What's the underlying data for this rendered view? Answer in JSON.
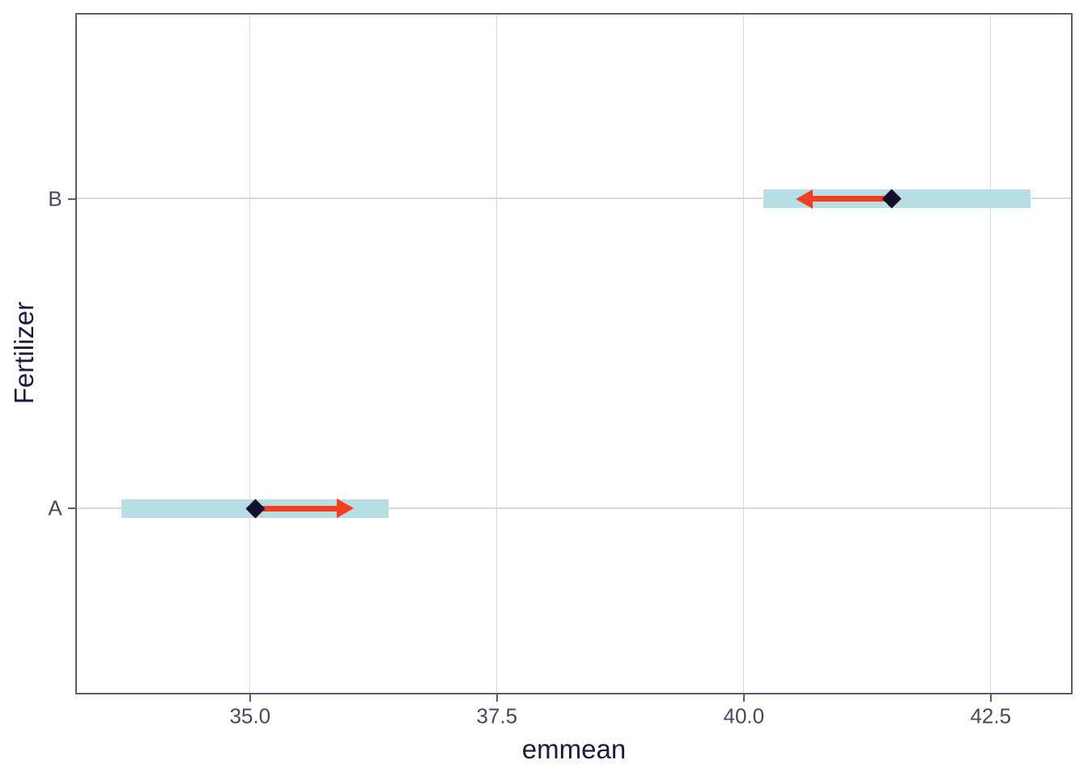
{
  "chart_data": {
    "type": "scatter",
    "subtype": "emmeans-confidence-intervals-with-comparison-arrows",
    "orientation": "horizontal",
    "title": "",
    "xlabel": "emmean",
    "ylabel": "Fertilizer",
    "xlim": [
      33.23,
      43.33
    ],
    "xticks": [
      35.0,
      37.5,
      40.0,
      42.5
    ],
    "xtick_labels": [
      "35.0",
      "37.5",
      "40.0",
      "42.5"
    ],
    "categories": [
      "A",
      "B"
    ],
    "series": [
      {
        "category": "A",
        "emmean": 35.05,
        "ci_lower": 33.7,
        "ci_upper": 36.4,
        "arrow_start": 35.05,
        "arrow_end": 36.05,
        "arrow_direction": "right"
      },
      {
        "category": "B",
        "emmean": 41.5,
        "ci_lower": 40.2,
        "ci_upper": 42.9,
        "arrow_start": 41.5,
        "arrow_end": 40.53,
        "arrow_direction": "left"
      }
    ],
    "legend": null,
    "grid": true,
    "colors": {
      "ci_bar": "#b7dee2",
      "point": "#150f2d",
      "arrow": "#f53d20",
      "panel_border": "#5f5971",
      "tick_mark": "#5f5971",
      "gridline": "#d9d9d9",
      "tick_label": "#4c4660",
      "axis_title": "#1e1840",
      "background": "#ffffff"
    }
  }
}
